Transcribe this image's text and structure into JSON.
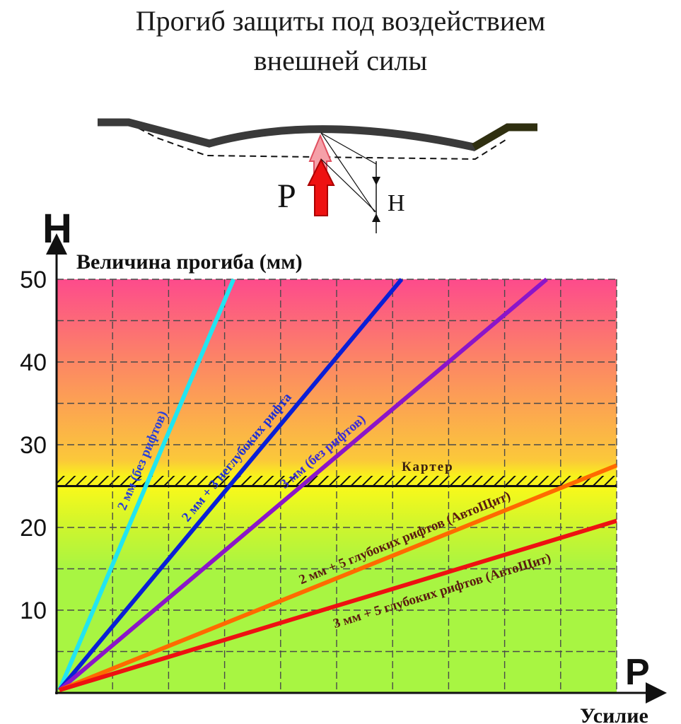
{
  "title_line1": "Прогиб защиты под воздействием",
  "title_line2": "внешней силы",
  "diagram": {
    "force_letter": "P",
    "deflection_letter": "H"
  },
  "chart_data": {
    "type": "line",
    "y_axis_letter": "H",
    "ylabel": "Величина прогиба (мм)",
    "x_axis_letter": "P",
    "xlabel": "Усилие",
    "ylim": [
      0,
      50
    ],
    "yticks": [
      10,
      20,
      30,
      40,
      50
    ],
    "threshold": {
      "value": 25,
      "label": "Картер"
    },
    "colors": {
      "band_top": "#fd4b8c",
      "band_mid": "#fc9a52",
      "band_yellow": "#f9f91a",
      "band_green": "#a8f542",
      "grid": "#4a4a4a"
    },
    "series": [
      {
        "name": "2 мм (без рифтов)",
        "color": "#22e5f0",
        "label_color": "#2a3fd8",
        "x_end": 0.316,
        "y_end": 50
      },
      {
        "name": "2 мм + 3 неглубоких рифта",
        "color": "#0a1fd6",
        "label_color": "#1d2fd6",
        "x_end": 0.616,
        "y_end": 50
      },
      {
        "name": "3 мм (без рифтов)",
        "color": "#8b15c9",
        "label_color": "#3a2bd6",
        "x_end": 0.875,
        "y_end": 50
      },
      {
        "name": "2 мм + 5 глубоких рифтов (АвтоЩит)",
        "color": "#ff6a00",
        "label_color": "#5a1a10",
        "x_end": 1.0,
        "y_end": 27.5
      },
      {
        "name": "3 мм + 5 глубоких рифтов (АвтоЩит)",
        "color": "#ee1111",
        "label_color": "#5a1a10",
        "x_end": 1.0,
        "y_end": 20.8
      }
    ]
  }
}
